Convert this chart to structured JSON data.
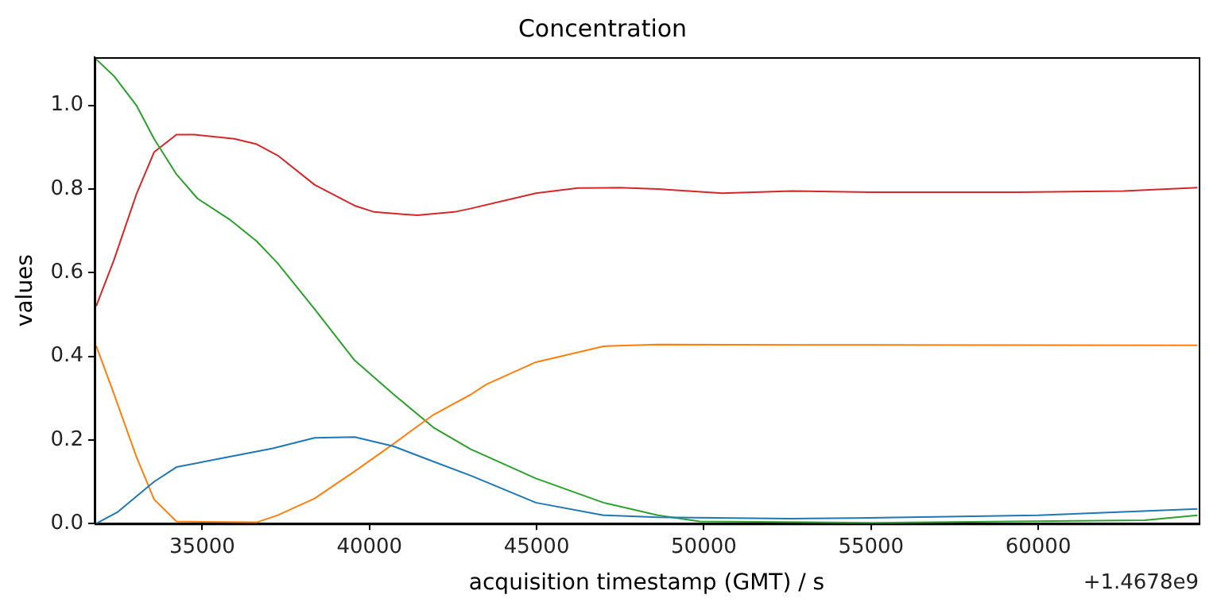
{
  "chart_data": {
    "type": "line",
    "title": "Concentration",
    "xlabel": "acquisition timestamp (GMT) / s",
    "ylabel": "values",
    "xlim": [
      31780,
      64800
    ],
    "xticks": [
      35000,
      40000,
      45000,
      50000,
      55000,
      60000
    ],
    "ylim": [
      0,
      1.115
    ],
    "yticks": [
      {
        "value": 0,
        "label": "0.0"
      },
      {
        "value": 0.2,
        "label": "0.2"
      },
      {
        "value": 0.4,
        "label": "0.4"
      },
      {
        "value": 0.6,
        "label": "0.6"
      },
      {
        "value": 0.8,
        "label": "0.8"
      },
      {
        "value": 1,
        "label": "1.0"
      }
    ],
    "annotations": [
      "+1.4678e9"
    ],
    "grid": false,
    "legend": false,
    "marker": "none",
    "line_style": "solid",
    "series": [
      {
        "color": "#1f77b4",
        "x": [
          31830,
          32460,
          33560,
          34230,
          35820,
          37110,
          38360,
          39560,
          40710,
          41860,
          43020,
          44980,
          47000,
          48630,
          52620,
          54540,
          60000,
          64760
        ],
        "values": [
          0,
          0.027,
          0.1,
          0.135,
          0.16,
          0.18,
          0.205,
          0.207,
          0.185,
          0.15,
          0.115,
          0.05,
          0.02,
          0.015,
          0.012,
          0.013,
          0.02,
          0.035
        ]
      },
      {
        "color": "#ff7f0e",
        "x": [
          31830,
          32360,
          33030,
          33560,
          34230,
          36630,
          37260,
          38360,
          39560,
          40710,
          41910,
          43020,
          43500,
          44980,
          47000,
          48630,
          55020,
          64760
        ],
        "values": [
          0.425,
          0.31,
          0.16,
          0.058,
          0.005,
          0.003,
          0.02,
          0.06,
          0.125,
          0.19,
          0.26,
          0.308,
          0.333,
          0.386,
          0.424,
          0.428,
          0.427,
          0.426
        ]
      },
      {
        "color": "#2ca02c",
        "x": [
          31830,
          32360,
          33030,
          33560,
          34230,
          34860,
          35820,
          36630,
          37260,
          38360,
          39560,
          40710,
          41910,
          43020,
          44980,
          47000,
          48630,
          49880,
          55020,
          63180,
          64760
        ],
        "values": [
          1.11,
          1.07,
          1.0,
          0.92,
          0.835,
          0.777,
          0.727,
          0.675,
          0.622,
          0.513,
          0.39,
          0.31,
          0.23,
          0.178,
          0.108,
          0.05,
          0.02,
          0.005,
          0.002,
          0.008,
          0.02
        ]
      },
      {
        "color": "#d62728",
        "x": [
          31830,
          32360,
          33030,
          33560,
          34230,
          34760,
          35960,
          36630,
          37260,
          38360,
          39560,
          40140,
          41430,
          42540,
          43020,
          44980,
          46230,
          47480,
          48630,
          50550,
          52620,
          55020,
          59340,
          62550,
          64760
        ],
        "values": [
          0.52,
          0.63,
          0.787,
          0.888,
          0.93,
          0.93,
          0.92,
          0.907,
          0.88,
          0.81,
          0.76,
          0.745,
          0.737,
          0.745,
          0.753,
          0.79,
          0.802,
          0.803,
          0.8,
          0.79,
          0.795,
          0.792,
          0.792,
          0.795,
          0.803
        ]
      }
    ]
  }
}
